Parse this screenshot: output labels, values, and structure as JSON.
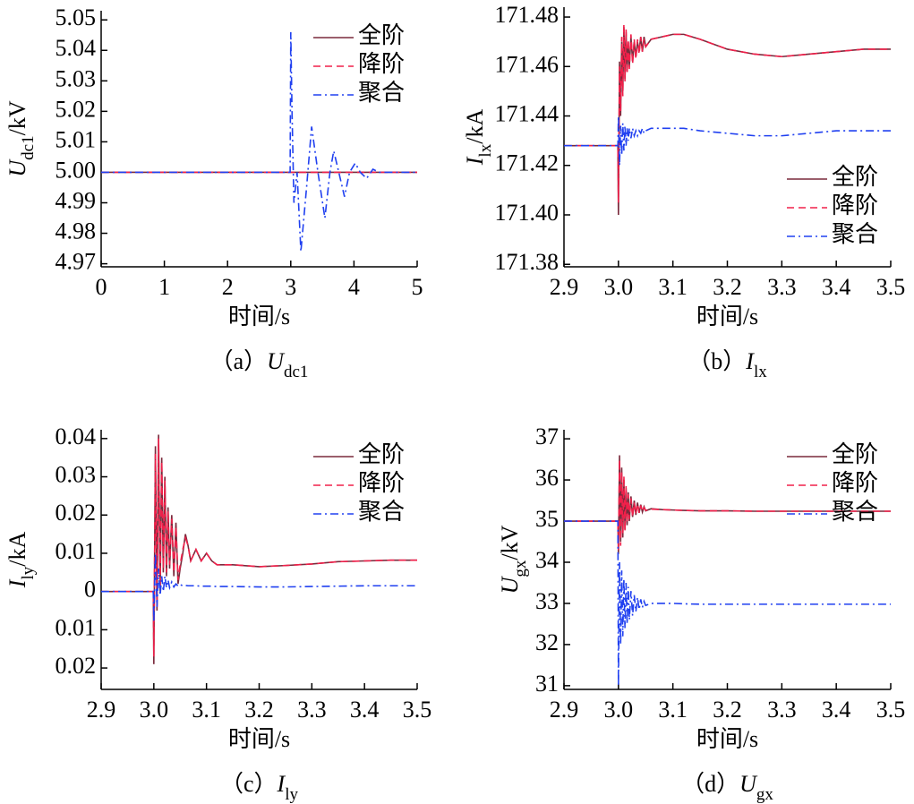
{
  "chart_data": [
    {
      "type": "line",
      "xlim": [
        0,
        5
      ],
      "ylim": [
        4.969,
        5.053
      ],
      "xticks": [
        0,
        1,
        2,
        3,
        4,
        5
      ],
      "yticks": [
        4.97,
        4.98,
        4.99,
        {
          "value": 5,
          "label": "5.00"
        },
        5.01,
        5.02,
        5.03,
        5.04,
        5.05
      ],
      "xlabel": "时间/s",
      "ylabel": {
        "symbol": "U",
        "subscript": "dc1",
        "unit": "/kV"
      },
      "caption": {
        "tag": "（a）",
        "symbol": "U",
        "subscript": "dc1"
      },
      "legend": "upper right",
      "x": [
        0,
        2.99,
        3.0,
        3.02,
        3.05,
        3.1,
        3.16,
        3.25,
        3.33,
        3.43,
        3.54,
        3.62,
        3.68,
        3.76,
        3.85,
        3.93,
        4.02,
        4.1,
        4.2,
        4.3,
        4.4,
        4.5,
        5
      ],
      "series": [
        {
          "name": "全阶",
          "color": "#7a2a3c",
          "dash": "solid",
          "values": [
            5,
            5,
            5,
            5,
            5,
            5,
            5,
            5,
            5,
            5,
            5,
            5,
            5,
            5,
            5,
            5,
            5,
            5,
            5,
            5,
            5,
            5,
            5
          ]
        },
        {
          "name": "降阶",
          "color": "#f0204a",
          "dash": "dashed",
          "values": [
            5,
            5,
            5,
            5,
            5,
            5,
            5,
            5,
            5,
            5,
            5,
            5,
            5,
            5,
            5,
            5,
            5,
            5,
            5,
            5,
            5,
            5,
            5
          ]
        },
        {
          "name": "聚合",
          "color": "#2040f0",
          "dash": "dashdot",
          "values": [
            5,
            5,
            5.046,
            5.02,
            4.99,
            5.0,
            4.974,
            4.995,
            5.015,
            5.0,
            4.985,
            5.0,
            5.007,
            5.0,
            4.992,
            5.0,
            5.003,
            5.0,
            4.998,
            5.001,
            5.0,
            5.0,
            5.0
          ]
        }
      ]
    },
    {
      "type": "line",
      "xlim": [
        2.9,
        3.5
      ],
      "ylim": [
        171.379,
        171.484
      ],
      "xticks": [
        2.9,
        {
          "value": 3,
          "label": "3.0"
        },
        3.1,
        3.2,
        3.3,
        3.4,
        3.5
      ],
      "yticks": [
        171.38,
        {
          "value": 171.4,
          "label": "171.40"
        },
        171.42,
        171.44,
        171.46,
        171.48
      ],
      "xlabel": "时间/s",
      "ylabel": {
        "symbol": "I",
        "subscript": "lx",
        "unit": "/kA"
      },
      "caption": {
        "tag": "（b）",
        "symbol": "I",
        "subscript": "lx"
      },
      "legend": "lower right",
      "x": [
        2.9,
        2.999,
        3.0,
        3.002,
        3.004,
        3.006,
        3.008,
        3.01,
        3.012,
        3.014,
        3.016,
        3.018,
        3.02,
        3.023,
        3.026,
        3.029,
        3.032,
        3.035,
        3.038,
        3.041,
        3.044,
        3.047,
        3.05,
        3.06,
        3.08,
        3.1,
        3.12,
        3.15,
        3.2,
        3.25,
        3.3,
        3.35,
        3.4,
        3.45,
        3.5
      ],
      "series": [
        {
          "name": "全阶",
          "color": "#7a2a3c",
          "dash": "solid",
          "values": [
            171.428,
            171.428,
            171.4,
            171.462,
            171.44,
            171.47,
            171.45,
            171.476,
            171.455,
            171.474,
            171.458,
            171.47,
            171.46,
            171.472,
            171.462,
            171.47,
            171.464,
            171.47,
            171.466,
            171.472,
            171.466,
            171.472,
            171.468,
            171.471,
            171.472,
            171.473,
            171.473,
            171.471,
            171.467,
            171.465,
            171.464,
            171.465,
            171.466,
            171.467,
            171.467
          ]
        },
        {
          "name": "降阶",
          "color": "#f0204a",
          "dash": "dashed",
          "values": [
            171.428,
            171.428,
            171.405,
            171.46,
            171.442,
            171.472,
            171.448,
            171.477,
            171.454,
            171.475,
            171.457,
            171.471,
            171.459,
            171.473,
            171.461,
            171.471,
            171.463,
            171.471,
            171.465,
            171.472,
            171.466,
            171.471,
            171.468,
            171.471,
            171.472,
            171.473,
            171.473,
            171.471,
            171.467,
            171.465,
            171.464,
            171.465,
            171.466,
            171.467,
            171.467
          ]
        },
        {
          "name": "聚合",
          "color": "#2040f0",
          "dash": "dashdot",
          "values": [
            171.428,
            171.428,
            171.44,
            171.42,
            171.436,
            171.424,
            171.437,
            171.426,
            171.436,
            171.428,
            171.435,
            171.43,
            171.435,
            171.431,
            171.435,
            171.432,
            171.434,
            171.432,
            171.434,
            171.433,
            171.435,
            171.433,
            171.434,
            171.435,
            171.435,
            171.435,
            171.435,
            171.434,
            171.433,
            171.432,
            171.432,
            171.433,
            171.434,
            171.434,
            171.434
          ]
        }
      ]
    },
    {
      "type": "line",
      "xlim": [
        2.9,
        3.5
      ],
      "ylim": [
        -0.0256,
        0.0423
      ],
      "xticks": [
        2.9,
        {
          "value": 3,
          "label": "3.0"
        },
        3.1,
        3.2,
        3.3,
        3.4,
        3.5
      ],
      "yticks": [
        {
          "value": -0.02,
          "label": "0.02"
        },
        {
          "value": -0.01,
          "label": "0.01"
        },
        0,
        0.01,
        0.02,
        0.03,
        0.04
      ],
      "xlabel": "时间/s",
      "ylabel": {
        "symbol": "I",
        "subscript": "ly",
        "unit": "/kA"
      },
      "caption": {
        "tag": "（c）",
        "symbol": "I",
        "subscript": "ly"
      },
      "legend": "upper right",
      "x": [
        2.9,
        2.999,
        3.0,
        3.003,
        3.006,
        3.009,
        3.012,
        3.015,
        3.018,
        3.021,
        3.024,
        3.027,
        3.03,
        3.034,
        3.038,
        3.042,
        3.046,
        3.05,
        3.055,
        3.06,
        3.065,
        3.07,
        3.08,
        3.09,
        3.1,
        3.11,
        3.12,
        3.15,
        3.2,
        3.25,
        3.3,
        3.35,
        3.4,
        3.45,
        3.5
      ],
      "series": [
        {
          "name": "全阶",
          "color": "#7a2a3c",
          "dash": "solid",
          "values": [
            0,
            0,
            -0.019,
            0.038,
            -0.005,
            0.041,
            0.0,
            0.035,
            0.005,
            0.03,
            0.004,
            0.022,
            0.006,
            0.02,
            0.004,
            0.018,
            0.002,
            0.006,
            0.01,
            0.015,
            0.012,
            0.008,
            0.011,
            0.008,
            0.01,
            0.008,
            0.007,
            0.007,
            0.0065,
            0.0068,
            0.0072,
            0.0078,
            0.008,
            0.0082,
            0.0082
          ]
        },
        {
          "name": "降阶",
          "color": "#f0204a",
          "dash": "dashed",
          "values": [
            0,
            0,
            -0.017,
            0.036,
            -0.004,
            0.04,
            0.001,
            0.034,
            0.006,
            0.029,
            0.005,
            0.021,
            0.007,
            0.019,
            0.005,
            0.017,
            0.003,
            0.007,
            0.011,
            0.014,
            0.012,
            0.008,
            0.011,
            0.008,
            0.01,
            0.008,
            0.007,
            0.007,
            0.0065,
            0.0068,
            0.0072,
            0.0078,
            0.008,
            0.0082,
            0.0082
          ]
        },
        {
          "name": "聚合",
          "color": "#2040f0",
          "dash": "dashdot",
          "values": [
            0,
            0,
            -0.008,
            0.01,
            -0.004,
            0.006,
            -0.001,
            0.004,
            0.0,
            0.004,
            0.001,
            0.003,
            0.001,
            0.0025,
            0.0012,
            0.002,
            0.0014,
            0.0018,
            0.0015,
            0.0016,
            0.0015,
            0.0015,
            0.0015,
            0.0014,
            0.0014,
            0.0014,
            0.0013,
            0.0013,
            0.0012,
            0.0012,
            0.0013,
            0.0014,
            0.0015,
            0.0015,
            0.0015
          ]
        }
      ]
    },
    {
      "type": "line",
      "xlim": [
        2.9,
        3.5
      ],
      "ylim": [
        30.91,
        37.22
      ],
      "xticks": [
        2.9,
        {
          "value": 3,
          "label": "3.0"
        },
        3.1,
        3.2,
        3.3,
        3.4,
        3.5
      ],
      "yticks": [
        31,
        32,
        33,
        34,
        35,
        36,
        37
      ],
      "xlabel": "时间/s",
      "ylabel": {
        "symbol": "U",
        "subscript": "gx",
        "unit": "/kV"
      },
      "caption": {
        "tag": "（d）",
        "symbol": "U",
        "subscript": "gx"
      },
      "legend": "upper right",
      "x": [
        2.9,
        2.999,
        3.0,
        3.002,
        3.004,
        3.006,
        3.008,
        3.01,
        3.012,
        3.014,
        3.016,
        3.018,
        3.02,
        3.023,
        3.026,
        3.029,
        3.032,
        3.035,
        3.038,
        3.041,
        3.044,
        3.047,
        3.05,
        3.06,
        3.08,
        3.1,
        3.12,
        3.15,
        3.2,
        3.25,
        3.3,
        3.35,
        3.4,
        3.45,
        3.5
      ],
      "series": [
        {
          "name": "全阶",
          "color": "#7a2a3c",
          "dash": "solid",
          "values": [
            35,
            35,
            34.2,
            36.6,
            34.5,
            36.3,
            34.6,
            36.0,
            34.8,
            35.8,
            34.9,
            35.7,
            35.0,
            35.6,
            35.1,
            35.5,
            35.15,
            35.45,
            35.2,
            35.4,
            35.22,
            35.35,
            35.25,
            35.3,
            35.28,
            35.27,
            35.26,
            35.25,
            35.25,
            35.24,
            35.24,
            35.24,
            35.24,
            35.24,
            35.24
          ]
        },
        {
          "name": "降阶",
          "color": "#f0204a",
          "dash": "dashed",
          "values": [
            35,
            35,
            34.3,
            36.5,
            34.4,
            36.2,
            34.7,
            36.1,
            34.75,
            35.85,
            34.95,
            35.65,
            35.05,
            35.55,
            35.1,
            35.45,
            35.18,
            35.42,
            35.2,
            35.38,
            35.23,
            35.33,
            35.26,
            35.29,
            35.28,
            35.27,
            35.26,
            35.25,
            35.25,
            35.24,
            35.24,
            35.24,
            35.24,
            35.24,
            35.24
          ]
        },
        {
          "name": "聚合",
          "color": "#2040f0",
          "dash": "dashdot",
          "values": [
            35,
            35,
            31.0,
            34.0,
            32.0,
            33.8,
            32.2,
            33.6,
            32.4,
            33.5,
            32.5,
            33.4,
            32.6,
            33.3,
            32.7,
            33.2,
            32.8,
            33.15,
            32.85,
            33.1,
            32.9,
            33.05,
            32.95,
            33.0,
            33.0,
            33.0,
            32.99,
            32.98,
            32.98,
            32.98,
            32.98,
            32.98,
            32.98,
            32.98,
            32.98
          ]
        }
      ]
    }
  ]
}
